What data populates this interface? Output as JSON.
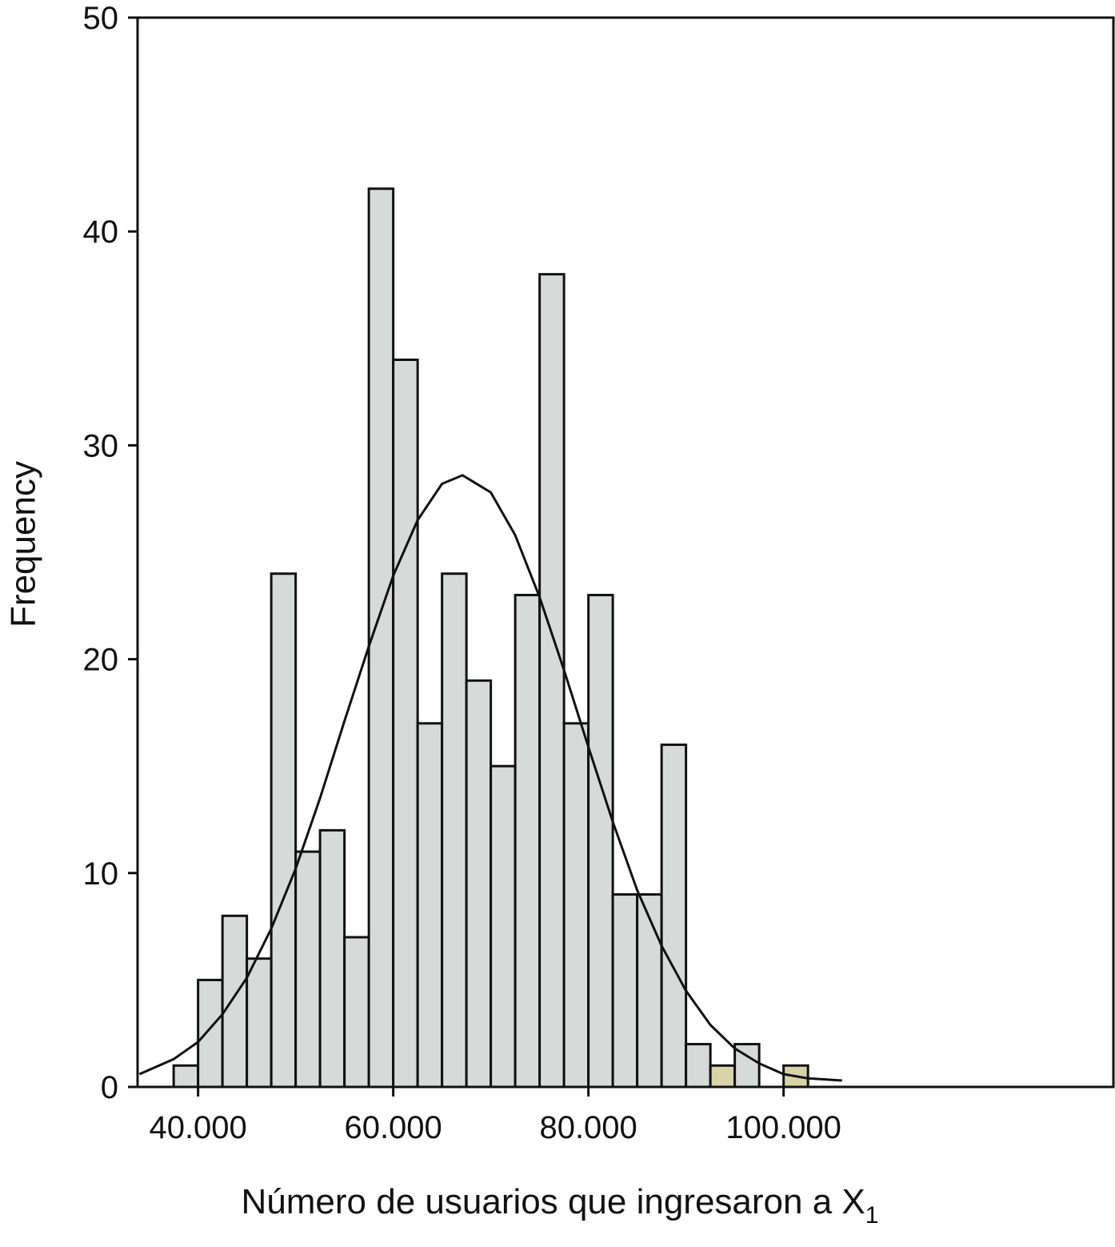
{
  "chart_data": {
    "type": "histogram",
    "y_label": "Frequency",
    "x_label": "Número de usuarios que ingresaron a X",
    "x_label_subscript": "1",
    "bins": [
      37500,
      40000,
      42500,
      45000,
      47500,
      50000,
      52500,
      55000,
      57500,
      60000,
      62500,
      65000,
      67500,
      70000,
      72500,
      75000,
      77500,
      80000,
      82500,
      85000,
      87500,
      90000,
      92500,
      95000,
      97500,
      100000,
      102500
    ],
    "counts": [
      1,
      5,
      8,
      6,
      24,
      11,
      12,
      7,
      42,
      34,
      17,
      24,
      19,
      15,
      23,
      38,
      17,
      23,
      9,
      9,
      16,
      2,
      1,
      2,
      0,
      1
    ],
    "colors": [
      "#d8dad9",
      "#d8dad9",
      "#d8dad9",
      "#d8dad9",
      "#d8dad9",
      "#d8dad9",
      "#d8dad9",
      "#d8dad9",
      "#d8dad9",
      "#d8dad9",
      "#d8dad9",
      "#d8dad9",
      "#d8dad9",
      "#d8dad9",
      "#d8dad9",
      "#d8dad9",
      "#d8dad9",
      "#d8dad9",
      "#d8dad9",
      "#d8dad9",
      "#d8dad9",
      "#d8dad9",
      "#d9d3a8",
      "#d8dad9",
      "#d8dad9",
      "#d9d3a8"
    ],
    "curve": {
      "x": [
        34000,
        37500,
        40000,
        42500,
        45000,
        47500,
        50000,
        52500,
        55000,
        57500,
        60000,
        62500,
        65000,
        67100,
        70000,
        72500,
        75000,
        77500,
        80000,
        82500,
        85000,
        87500,
        90000,
        92500,
        95000,
        97500,
        100000,
        102500,
        106000
      ],
      "y": [
        0.6,
        1.3,
        2.1,
        3.4,
        5.1,
        7.4,
        10.2,
        13.5,
        17.1,
        20.6,
        23.9,
        26.5,
        28.2,
        28.6,
        27.8,
        25.8,
        22.9,
        19.5,
        15.9,
        12.4,
        9.2,
        6.6,
        4.5,
        2.9,
        1.8,
        1.1,
        0.6,
        0.4,
        0.3
      ]
    },
    "xlim": [
      33800,
      133800
    ],
    "ylim": [
      0,
      50
    ],
    "xticks": [
      {
        "value": 40000,
        "label": "40.000"
      },
      {
        "value": 60000,
        "label": "60.000"
      },
      {
        "value": 80000,
        "label": "80.000"
      },
      {
        "value": 100000,
        "label": "100.000"
      }
    ],
    "yticks": [
      0,
      10,
      20,
      30,
      40,
      50
    ]
  }
}
